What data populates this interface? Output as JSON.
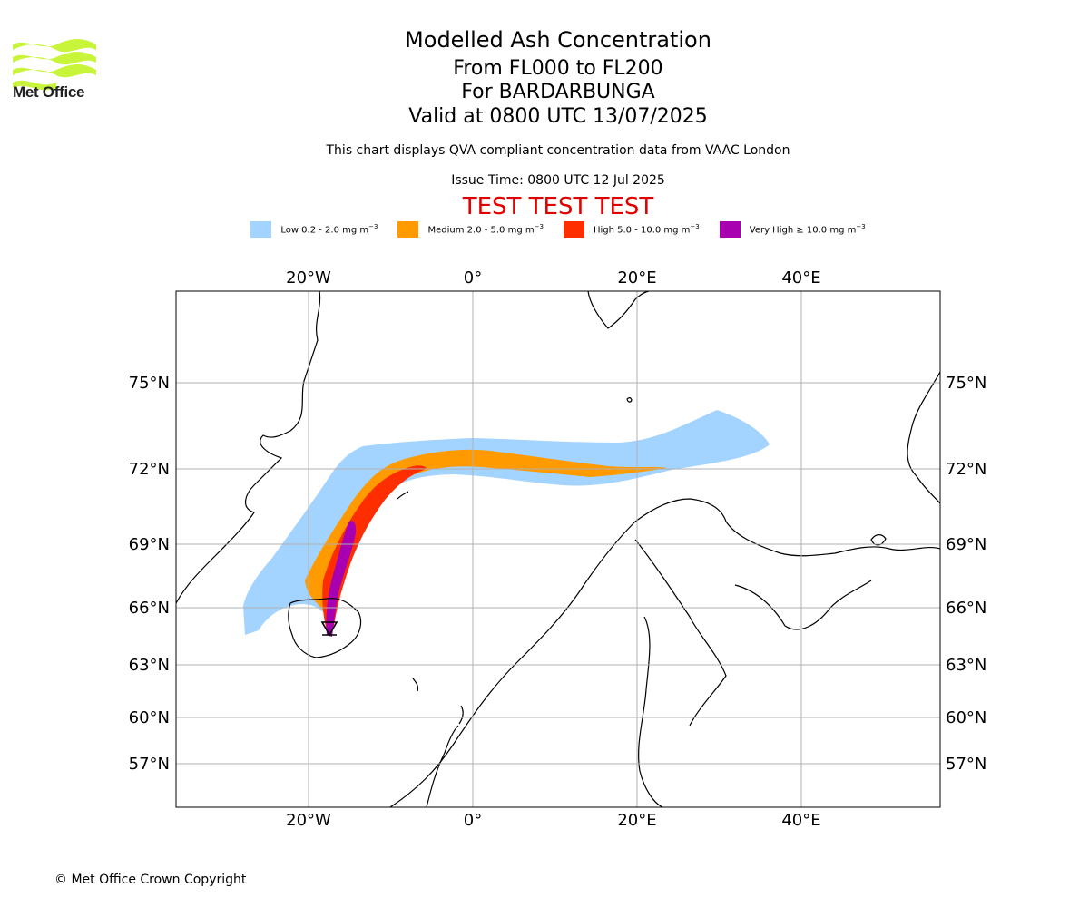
{
  "header": {
    "logo_name": "Met Office",
    "title": "Modelled Ash Concentration",
    "level_range": "From FL000 to FL200",
    "volcano": "For BARDARBUNGA",
    "valid_time": "Valid at 0800 UTC 13/07/2025",
    "description": "This chart displays QVA compliant concentration data from VAAC London",
    "issue_time": "Issue Time: 0800 UTC 12 Jul 2025",
    "test_banner": "TEST TEST TEST"
  },
  "legend": [
    {
      "label": "Low 0.2 - 2.0 mg m",
      "sup": "−3",
      "color": "#a3d3ff"
    },
    {
      "label": "Medium 2.0 - 5.0 mg m",
      "sup": "−3",
      "color": "#ff9a00"
    },
    {
      "label": "High 5.0 - 10.0 mg m",
      "sup": "−3",
      "color": "#ff2e00"
    },
    {
      "label": "Very High  ≥  10.0 mg m",
      "sup": "−3",
      "color": "#a800b0"
    }
  ],
  "map": {
    "lon_labels": [
      "20°W",
      "0°",
      "20°E",
      "40°E"
    ],
    "lat_labels": [
      "75°N",
      "72°N",
      "69°N",
      "66°N",
      "63°N",
      "60°N",
      "57°N"
    ],
    "gridlines": true,
    "volcano_marker": "triangle"
  },
  "footer": {
    "copyright": "© Met Office Crown Copyright"
  }
}
